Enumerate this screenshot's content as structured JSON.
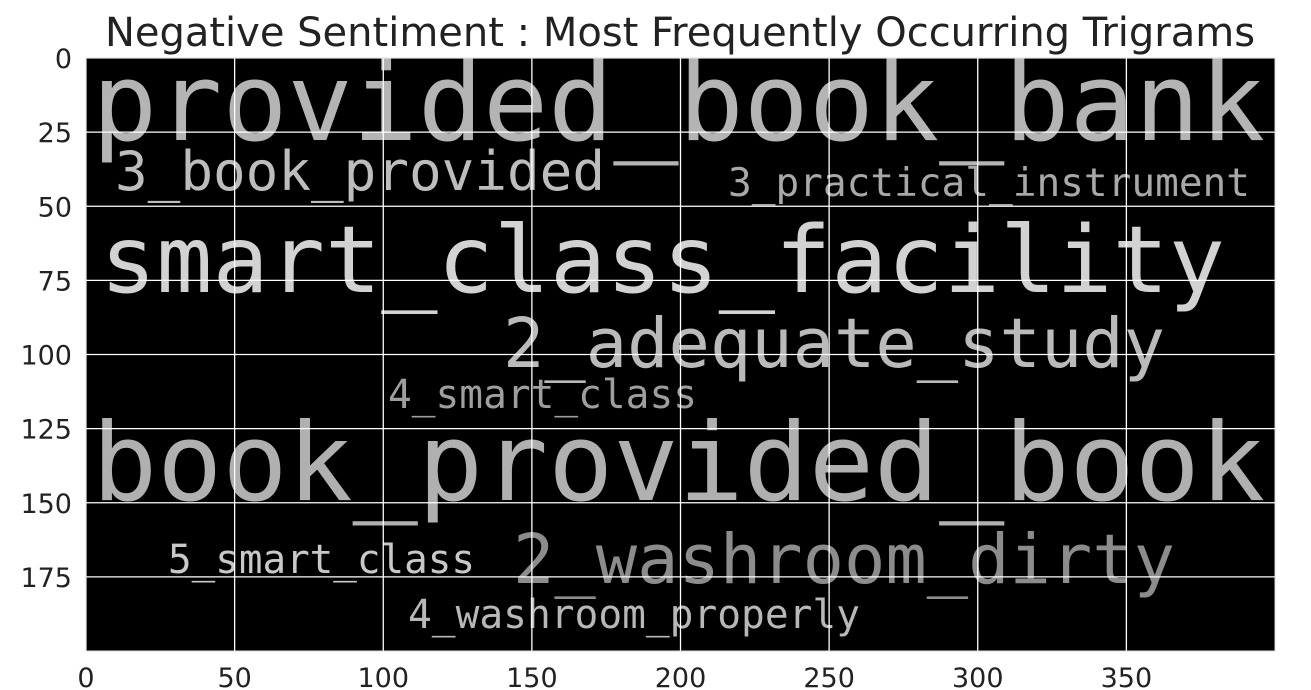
{
  "chart_data": {
    "type": "wordcloud",
    "title": "Negative Sentiment : Most Frequently Occurring Trigrams",
    "words": [
      "provided_book_bank",
      "3_book_provided",
      "3_practical_instrument",
      "smart_class_facility",
      "2_adequate_study",
      "4_smart_class",
      "book_provided_book",
      "5_smart_class",
      "2_washroom_dirty",
      "4_washroom_properly"
    ],
    "xlim": [
      0,
      400
    ],
    "ylim": [
      200,
      0
    ],
    "xticks": [
      0,
      50,
      100,
      150,
      200,
      250,
      300,
      350
    ],
    "yticks": [
      0,
      25,
      50,
      75,
      100,
      125,
      150,
      175
    ],
    "grid": true,
    "background": "#000000",
    "grid_color": "#ffffff"
  }
}
